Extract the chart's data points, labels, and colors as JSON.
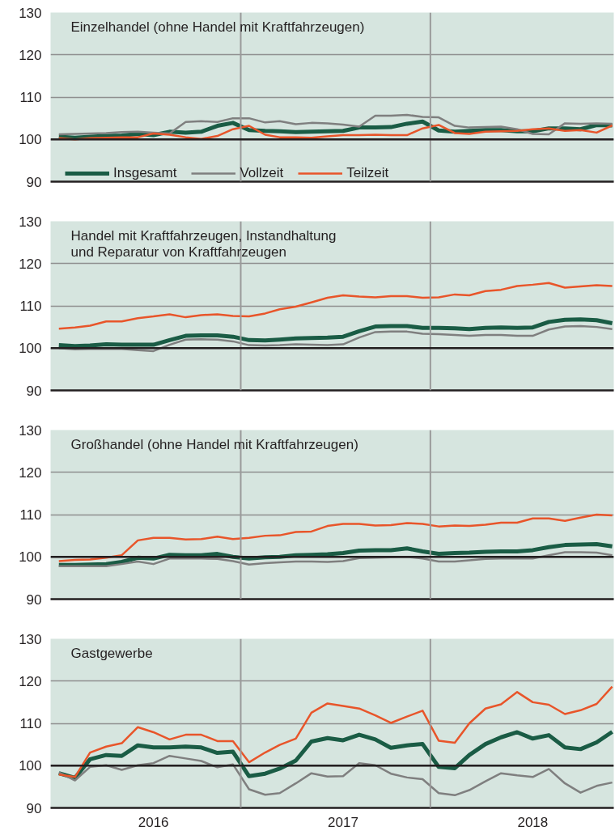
{
  "chart_data": [
    {
      "type": "line",
      "title": "Einzelhandel (ohne Handel mit Kraftfahrzeugen)",
      "x": [
        "2016-01",
        "2016-02",
        "2016-03",
        "2016-04",
        "2016-05",
        "2016-06",
        "2016-07",
        "2016-08",
        "2016-09",
        "2016-10",
        "2016-11",
        "2016-12",
        "2017-01",
        "2017-02",
        "2017-03",
        "2017-04",
        "2017-05",
        "2017-06",
        "2017-07",
        "2017-08",
        "2017-09",
        "2017-10",
        "2017-11",
        "2017-12",
        "2018-01",
        "2018-02",
        "2018-03",
        "2018-04",
        "2018-05",
        "2018-06",
        "2018-07",
        "2018-08",
        "2018-09",
        "2018-10",
        "2018-11",
        "2018-12"
      ],
      "xlim": [
        "2015-12-16",
        "2018-12-04"
      ],
      "ylim": [
        90,
        130
      ],
      "yticks": [
        90,
        100,
        110,
        120,
        130
      ],
      "grid": "y",
      "legend": "bottom left",
      "tick_labels": "y",
      "ref_lines": [
        {
          "axis": "x",
          "value": "2016-12-16",
          "label": null,
          "color": "#9a9a9a"
        },
        {
          "axis": "x",
          "value": "2017-12-16",
          "label": null,
          "color": "#9a9a9a"
        },
        {
          "axis": "y",
          "value": 100,
          "label": null,
          "color": "#231f20"
        }
      ],
      "series": [
        {
          "name": "Insgesamt",
          "color": "#1a5c45",
          "values": [
            100.6,
            100.4,
            100.6,
            100.8,
            100.9,
            101.3,
            101.0,
            101.8,
            101.6,
            101.8,
            103.2,
            103.9,
            102.2,
            102.0,
            101.9,
            101.7,
            101.8,
            101.9,
            102.0,
            102.8,
            102.8,
            102.9,
            103.7,
            104.2,
            102.1,
            101.8,
            102.0,
            102.2,
            102.2,
            101.9,
            101.9,
            102.6,
            102.6,
            102.4,
            103.4,
            103.3
          ]
        },
        {
          "name": "Vollzeit",
          "color": "#7f7f7f",
          "values": [
            101.2,
            101.3,
            101.4,
            101.5,
            101.7,
            101.8,
            101.6,
            101.4,
            104.1,
            104.3,
            104.1,
            105.0,
            105.0,
            104.0,
            104.3,
            103.6,
            103.9,
            103.8,
            103.5,
            103.0,
            105.6,
            105.6,
            105.8,
            105.3,
            105.2,
            103.2,
            102.8,
            102.9,
            103.0,
            102.4,
            101.3,
            101.2,
            103.8,
            103.7,
            103.8,
            103.7
          ]
        },
        {
          "name": "Teilzeit",
          "color": "#e8552a",
          "values": [
            100.3,
            100.0,
            100.3,
            100.4,
            100.5,
            100.5,
            101.4,
            101.1,
            100.5,
            100.1,
            100.8,
            102.4,
            103.2,
            101.1,
            100.5,
            100.5,
            100.4,
            100.7,
            101.0,
            101.0,
            101.1,
            101.0,
            101.0,
            102.6,
            103.4,
            101.5,
            101.3,
            101.8,
            101.9,
            102.0,
            102.4,
            102.6,
            102.0,
            102.2,
            101.6,
            103.3
          ]
        }
      ]
    },
    {
      "type": "line",
      "title": "Handel mit Kraftfahrzeugen, Instandhaltung\nund Reparatur von Kraftfahrzeugen",
      "x": [
        "2016-01",
        "2016-02",
        "2016-03",
        "2016-04",
        "2016-05",
        "2016-06",
        "2016-07",
        "2016-08",
        "2016-09",
        "2016-10",
        "2016-11",
        "2016-12",
        "2017-01",
        "2017-02",
        "2017-03",
        "2017-04",
        "2017-05",
        "2017-06",
        "2017-07",
        "2017-08",
        "2017-09",
        "2017-10",
        "2017-11",
        "2017-12",
        "2018-01",
        "2018-02",
        "2018-03",
        "2018-04",
        "2018-05",
        "2018-06",
        "2018-07",
        "2018-08",
        "2018-09",
        "2018-10",
        "2018-11",
        "2018-12"
      ],
      "xlim": [
        "2015-12-16",
        "2018-12-04"
      ],
      "ylim": [
        90,
        130
      ],
      "yticks": [
        90,
        100,
        110,
        120,
        130
      ],
      "grid": "y",
      "tick_labels": "y",
      "ref_lines": [
        {
          "axis": "x",
          "value": "2016-12-16",
          "label": null,
          "color": "#9a9a9a"
        },
        {
          "axis": "x",
          "value": "2017-12-16",
          "label": null,
          "color": "#9a9a9a"
        },
        {
          "axis": "y",
          "value": 100,
          "label": null,
          "color": "#231f20"
        }
      ],
      "series": [
        {
          "color": "#1a5c45",
          "values": [
            100.7,
            100.5,
            100.6,
            100.9,
            100.8,
            100.8,
            100.8,
            101.9,
            102.9,
            103.0,
            103.0,
            102.7,
            101.9,
            101.8,
            102.0,
            102.3,
            102.4,
            102.5,
            102.7,
            104.0,
            105.1,
            105.2,
            105.2,
            104.8,
            104.8,
            104.7,
            104.5,
            104.8,
            104.9,
            104.8,
            104.9,
            106.2,
            106.7,
            106.8,
            106.6,
            105.9
          ]
        },
        {
          "color": "#7f7f7f",
          "values": [
            100.0,
            99.7,
            99.8,
            99.8,
            99.8,
            99.5,
            99.3,
            100.8,
            102.0,
            102.1,
            102.0,
            101.6,
            100.7,
            100.6,
            100.7,
            100.9,
            100.8,
            100.7,
            100.9,
            102.5,
            103.8,
            103.9,
            103.9,
            103.4,
            103.3,
            103.1,
            102.9,
            103.1,
            103.1,
            102.9,
            102.9,
            104.4,
            105.1,
            105.2,
            105.0,
            104.5
          ]
        },
        {
          "color": "#e8552a",
          "values": [
            104.6,
            104.9,
            105.3,
            106.3,
            106.3,
            107.1,
            107.5,
            108.0,
            107.3,
            107.8,
            108.0,
            107.6,
            107.5,
            108.2,
            109.2,
            109.8,
            110.8,
            111.9,
            112.5,
            112.2,
            112.0,
            112.3,
            112.3,
            111.9,
            112.0,
            112.7,
            112.5,
            113.5,
            113.8,
            114.7,
            115.0,
            115.4,
            114.3,
            114.6,
            114.9,
            114.7
          ]
        }
      ]
    },
    {
      "type": "line",
      "title": "Großhandel (ohne Handel mit Kraftfahrzeugen)",
      "x": [
        "2016-01",
        "2016-02",
        "2016-03",
        "2016-04",
        "2016-05",
        "2016-06",
        "2016-07",
        "2016-08",
        "2016-09",
        "2016-10",
        "2016-11",
        "2016-12",
        "2017-01",
        "2017-02",
        "2017-03",
        "2017-04",
        "2017-05",
        "2017-06",
        "2017-07",
        "2017-08",
        "2017-09",
        "2017-10",
        "2017-11",
        "2017-12",
        "2018-01",
        "2018-02",
        "2018-03",
        "2018-04",
        "2018-05",
        "2018-06",
        "2018-07",
        "2018-08",
        "2018-09",
        "2018-10",
        "2018-11",
        "2018-12"
      ],
      "xlim": [
        "2015-12-16",
        "2018-12-04"
      ],
      "ylim": [
        90,
        130
      ],
      "yticks": [
        90,
        100,
        110,
        120,
        130
      ],
      "grid": "y",
      "tick_labels": "y",
      "ref_lines": [
        {
          "axis": "x",
          "value": "2016-12-16",
          "label": null,
          "color": "#9a9a9a"
        },
        {
          "axis": "x",
          "value": "2017-12-16",
          "label": null,
          "color": "#9a9a9a"
        },
        {
          "axis": "y",
          "value": 100,
          "label": null,
          "color": "#231f20"
        }
      ],
      "series": [
        {
          "color": "#1a5c45",
          "values": [
            98.1,
            98.1,
            98.2,
            98.3,
            98.8,
            99.8,
            99.6,
            100.5,
            100.4,
            100.4,
            100.7,
            100.0,
            99.6,
            99.9,
            100.0,
            100.4,
            100.5,
            100.6,
            100.9,
            101.5,
            101.6,
            101.6,
            102.0,
            101.3,
            100.7,
            100.9,
            101.0,
            101.2,
            101.3,
            101.3,
            101.6,
            102.3,
            102.8,
            102.9,
            103.0,
            102.5
          ]
        },
        {
          "color": "#7f7f7f",
          "values": [
            97.8,
            97.8,
            97.8,
            97.8,
            98.3,
            98.9,
            98.3,
            99.6,
            99.6,
            99.6,
            99.5,
            99.0,
            98.2,
            98.5,
            98.7,
            98.9,
            98.9,
            98.8,
            99.0,
            99.7,
            99.8,
            99.9,
            100.0,
            99.6,
            98.9,
            98.9,
            99.2,
            99.5,
            99.6,
            99.6,
            99.6,
            100.4,
            101.1,
            101.1,
            101.0,
            100.4
          ]
        },
        {
          "color": "#e8552a",
          "values": [
            99.0,
            99.3,
            99.4,
            99.8,
            100.4,
            103.9,
            104.5,
            104.5,
            104.1,
            104.2,
            104.8,
            104.2,
            104.5,
            105.0,
            105.1,
            105.9,
            106.0,
            107.3,
            107.8,
            107.8,
            107.4,
            107.5,
            108.0,
            107.8,
            107.2,
            107.4,
            107.3,
            107.6,
            108.1,
            108.1,
            109.1,
            109.1,
            108.5,
            109.3,
            110.0,
            109.8
          ]
        }
      ]
    },
    {
      "type": "line",
      "title": "Gastgewerbe",
      "x": [
        "2016-01",
        "2016-02",
        "2016-03",
        "2016-04",
        "2016-05",
        "2016-06",
        "2016-07",
        "2016-08",
        "2016-09",
        "2016-10",
        "2016-11",
        "2016-12",
        "2017-01",
        "2017-02",
        "2017-03",
        "2017-04",
        "2017-05",
        "2017-06",
        "2017-07",
        "2017-08",
        "2017-09",
        "2017-10",
        "2017-11",
        "2017-12",
        "2018-01",
        "2018-02",
        "2018-03",
        "2018-04",
        "2018-05",
        "2018-06",
        "2018-07",
        "2018-08",
        "2018-09",
        "2018-10",
        "2018-11",
        "2018-12"
      ],
      "xlim": [
        "2015-12-16",
        "2018-12-04"
      ],
      "xticks": [
        {
          "value": "2016-07-01",
          "label": "2016"
        },
        {
          "value": "2017-07-01",
          "label": "2017"
        },
        {
          "value": "2018-07-01",
          "label": "2018"
        }
      ],
      "ylim": [
        90,
        130
      ],
      "yticks": [
        90,
        100,
        110,
        120,
        130
      ],
      "grid": "y",
      "ref_lines": [
        {
          "axis": "x",
          "value": "2016-12-16",
          "label": null,
          "color": "#9a9a9a"
        },
        {
          "axis": "x",
          "value": "2017-12-16",
          "label": null,
          "color": "#9a9a9a"
        },
        {
          "axis": "y",
          "value": 100,
          "label": null,
          "color": "#231f20"
        }
      ],
      "series": [
        {
          "color": "#1a5c45",
          "values": [
            98.2,
            97.1,
            101.5,
            102.5,
            102.3,
            104.8,
            104.3,
            104.3,
            104.5,
            104.3,
            103.0,
            103.3,
            97.5,
            98.1,
            99.3,
            101.2,
            105.7,
            106.5,
            106.0,
            107.3,
            106.2,
            104.2,
            104.8,
            105.1,
            99.7,
            99.4,
            102.5,
            105.1,
            106.7,
            107.9,
            106.4,
            107.2,
            104.3,
            103.9,
            105.5,
            108.0
          ]
        },
        {
          "color": "#7f7f7f",
          "values": [
            98.4,
            96.5,
            99.7,
            100.1,
            99.0,
            100.1,
            100.6,
            102.3,
            101.7,
            101.1,
            99.6,
            100.3,
            94.4,
            93.1,
            93.5,
            95.8,
            98.2,
            97.4,
            97.5,
            100.6,
            100.1,
            98.1,
            97.2,
            96.8,
            93.5,
            93.0,
            94.2,
            96.3,
            98.2,
            97.7,
            97.3,
            99.2,
            95.8,
            93.6,
            95.2,
            96.0
          ]
        },
        {
          "color": "#e8552a",
          "values": [
            97.9,
            97.3,
            103.1,
            104.5,
            105.3,
            109.1,
            107.9,
            106.2,
            107.3,
            107.3,
            105.8,
            105.8,
            100.8,
            103.1,
            104.9,
            106.4,
            112.5,
            114.7,
            114.1,
            113.5,
            111.9,
            110.1,
            111.6,
            113.0,
            105.9,
            105.4,
            110.0,
            113.5,
            114.5,
            117.4,
            115.0,
            114.4,
            112.2,
            113.1,
            114.6,
            118.7
          ]
        }
      ]
    }
  ]
}
